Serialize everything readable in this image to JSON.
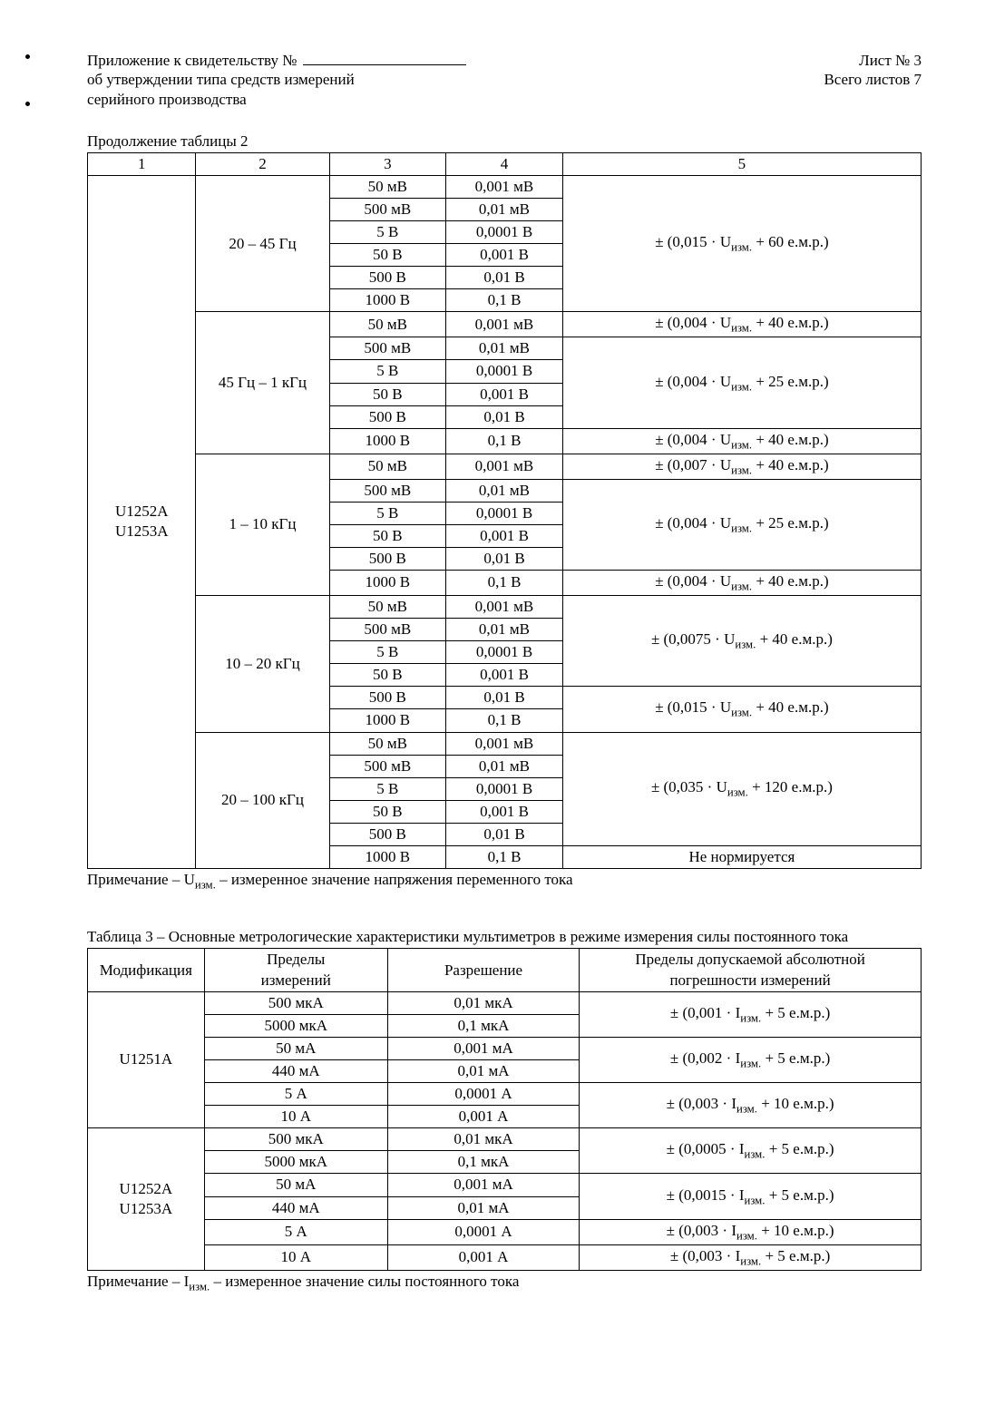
{
  "header": {
    "cert_prefix": "Приложение к свидетельству №",
    "approval": "об утверждении типа средств измерений",
    "serial": "серийного производства",
    "sheet_label": "Лист № 3",
    "total_sheets": "Всего листов 7"
  },
  "table2": {
    "caption": "Продолжение таблицы 2",
    "head": [
      "1",
      "2",
      "3",
      "4",
      "5"
    ],
    "model": "U1252A\nU1253A",
    "blocks": [
      {
        "range": "20 – 45 Гц",
        "rows": [
          [
            "50 мВ",
            "0,001 мВ"
          ],
          [
            "500 мВ",
            "0,01 мВ"
          ],
          [
            "5 В",
            "0,0001 В"
          ],
          [
            "50 В",
            "0,001 В"
          ],
          [
            "500 В",
            "0,01 В"
          ],
          [
            "1000 В",
            "0,1 В"
          ]
        ],
        "errs": [
          {
            "span": 6,
            "text": "± (0,015 · Uизм. + 60 е.м.р.)"
          }
        ]
      },
      {
        "range": "45 Гц – 1 кГц",
        "rows": [
          [
            "50 мВ",
            "0,001 мВ"
          ],
          [
            "500 мВ",
            "0,01 мВ"
          ],
          [
            "5 В",
            "0,0001 В"
          ],
          [
            "50 В",
            "0,001 В"
          ],
          [
            "500 В",
            "0,01 В"
          ],
          [
            "1000 В",
            "0,1 В"
          ]
        ],
        "errs": [
          {
            "span": 1,
            "text": "± (0,004 · Uизм. + 40 е.м.р.)"
          },
          {
            "span": 4,
            "text": "± (0,004 · Uизм. + 25 е.м.р.)"
          },
          {
            "span": 1,
            "text": "± (0,004 · Uизм. + 40 е.м.р.)"
          }
        ]
      },
      {
        "range": "1 – 10 кГц",
        "rows": [
          [
            "50 мВ",
            "0,001 мВ"
          ],
          [
            "500 мВ",
            "0,01 мВ"
          ],
          [
            "5 В",
            "0,0001 В"
          ],
          [
            "50 В",
            "0,001 В"
          ],
          [
            "500 В",
            "0,01 В"
          ],
          [
            "1000 В",
            "0,1 В"
          ]
        ],
        "errs": [
          {
            "span": 1,
            "text": "± (0,007 · Uизм. + 40 е.м.р.)"
          },
          {
            "span": 4,
            "text": "± (0,004 · Uизм. + 25 е.м.р.)"
          },
          {
            "span": 1,
            "text": "± (0,004 · Uизм. + 40 е.м.р.)"
          }
        ]
      },
      {
        "range": "10 – 20 кГц",
        "rows": [
          [
            "50 мВ",
            "0,001 мВ"
          ],
          [
            "500 мВ",
            "0,01 мВ"
          ],
          [
            "5 В",
            "0,0001 В"
          ],
          [
            "50 В",
            "0,001 В"
          ],
          [
            "500 В",
            "0,01 В"
          ],
          [
            "1000 В",
            "0,1 В"
          ]
        ],
        "errs": [
          {
            "span": 4,
            "text": "± (0,0075 · Uизм. + 40 е.м.р.)"
          },
          {
            "span": 2,
            "text": "± (0,015 · Uизм. + 40 е.м.р.)"
          }
        ]
      },
      {
        "range": "20 – 100 кГц",
        "rows": [
          [
            "50 мВ",
            "0,001 мВ"
          ],
          [
            "500 мВ",
            "0,01 мВ"
          ],
          [
            "5 В",
            "0,0001 В"
          ],
          [
            "50 В",
            "0,001 В"
          ],
          [
            "500 В",
            "0,01 В"
          ],
          [
            "1000 В",
            "0,1 В"
          ]
        ],
        "errs": [
          {
            "span": 5,
            "text": "± (0,035 · Uизм. + 120 е.м.р.)"
          },
          {
            "span": 1,
            "text": "Не нормируется"
          }
        ]
      }
    ],
    "note": "Примечание – Uизм.  – измеренное значение напряжения переменного тока"
  },
  "table3": {
    "caption": "Таблица 3 – Основные метрологические характеристики мультиметров в режиме измерения силы постоянного тока",
    "head": [
      "Модификация",
      "Пределы\nизмерений",
      "Разрешение",
      "Пределы допускаемой абсолютной\nпогрешности измерений"
    ],
    "groups": [
      {
        "model": "U1251A",
        "rows": [
          [
            "500 мкА",
            "0,01 мкА"
          ],
          [
            "5000 мкА",
            "0,1 мкА"
          ],
          [
            "50 мА",
            "0,001 мА"
          ],
          [
            "440 мА",
            "0,01 мА"
          ],
          [
            "5 А",
            "0,0001 А"
          ],
          [
            "10 А",
            "0,001 А"
          ]
        ],
        "errs": [
          {
            "span": 2,
            "text": "± (0,001 · Iизм. + 5 е.м.р.)"
          },
          {
            "span": 2,
            "text": "± (0,002 · Iизм. + 5 е.м.р.)"
          },
          {
            "span": 2,
            "text": "± (0,003 · Iизм. + 10 е.м.р.)"
          }
        ]
      },
      {
        "model": "U1252A\nU1253A",
        "rows": [
          [
            "500 мкА",
            "0,01 мкА"
          ],
          [
            "5000 мкА",
            "0,1 мкА"
          ],
          [
            "50 мА",
            "0,001 мА"
          ],
          [
            "440 мА",
            "0,01 мА"
          ],
          [
            "5 А",
            "0,0001 А"
          ],
          [
            "10 А",
            "0,001 А"
          ]
        ],
        "errs": [
          {
            "span": 2,
            "text": "± (0,0005 · Iизм. + 5 е.м.р.)"
          },
          {
            "span": 2,
            "text": "± (0,0015 · Iизм. + 5 е.м.р.)"
          },
          {
            "span": 1,
            "text": "± (0,003 · Iизм. + 10 е.м.р.)"
          },
          {
            "span": 1,
            "text": "± (0,003 · Iизм. + 5 е.м.р.)"
          }
        ]
      }
    ],
    "note": "Примечание – Iизм.  – измеренное значение силы постоянного тока"
  }
}
